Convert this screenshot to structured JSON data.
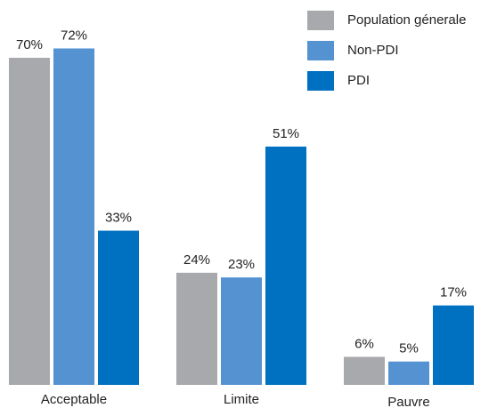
{
  "chart_data": {
    "type": "bar",
    "categories": [
      "Acceptable",
      "Limite",
      "Pauvre"
    ],
    "series": [
      {
        "name": "Population génerale",
        "color": "#a7a9ac",
        "values": [
          70,
          24,
          6
        ],
        "value_labels": [
          "70%",
          "24%",
          "6%"
        ]
      },
      {
        "name": "Non-PDI",
        "color": "#5592d2",
        "values": [
          72,
          23,
          5
        ],
        "value_labels": [
          "72%",
          "23%",
          "5%"
        ]
      },
      {
        "name": "PDI",
        "color": "#0070c0",
        "values": [
          33,
          51,
          17
        ],
        "value_labels": [
          "33%",
          "51%",
          "17%"
        ]
      }
    ],
    "legend": "top-right"
  }
}
